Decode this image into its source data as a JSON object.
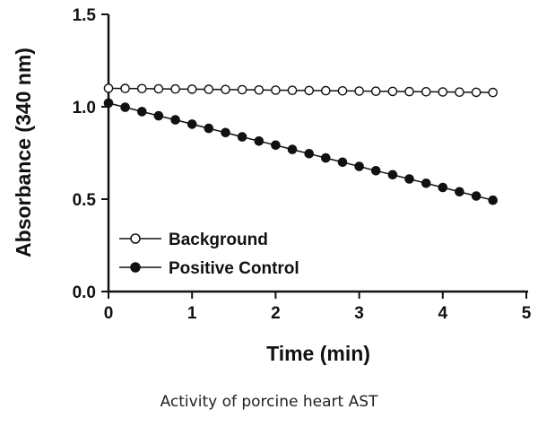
{
  "chart_data": {
    "type": "line",
    "xlabel": "Time (min)",
    "ylabel": "Absorbance (340 nm)",
    "xlim": [
      0,
      5
    ],
    "ylim": [
      0,
      1.5
    ],
    "xticks": [
      "0",
      "1",
      "2",
      "3",
      "4",
      "5"
    ],
    "yticks": [
      "0.0",
      "0.5",
      "1.0",
      "1.5"
    ],
    "grid": false,
    "legend": "lower-left",
    "series": [
      {
        "name": "Background",
        "marker": "open-circle",
        "color": "#111111",
        "x": [
          0,
          0.2,
          0.4,
          0.6,
          0.8,
          1.0,
          1.2,
          1.4,
          1.6,
          1.8,
          2.0,
          2.2,
          2.4,
          2.6,
          2.8,
          3.0,
          3.2,
          3.4,
          3.6,
          3.8,
          4.0,
          4.2,
          4.4,
          4.6
        ],
        "values": [
          1.1,
          1.099,
          1.098,
          1.097,
          1.096,
          1.095,
          1.094,
          1.093,
          1.092,
          1.091,
          1.09,
          1.089,
          1.088,
          1.087,
          1.086,
          1.085,
          1.084,
          1.083,
          1.082,
          1.081,
          1.08,
          1.079,
          1.078,
          1.077
        ]
      },
      {
        "name": "Positive Control",
        "marker": "filled-circle",
        "color": "#111111",
        "x": [
          0,
          0.2,
          0.4,
          0.6,
          0.8,
          1.0,
          1.2,
          1.4,
          1.6,
          1.8,
          2.0,
          2.2,
          2.4,
          2.6,
          2.8,
          3.0,
          3.2,
          3.4,
          3.6,
          3.8,
          4.0,
          4.2,
          4.4,
          4.6
        ],
        "values": [
          1.02,
          0.997,
          0.974,
          0.951,
          0.929,
          0.906,
          0.883,
          0.86,
          0.837,
          0.814,
          0.792,
          0.769,
          0.746,
          0.723,
          0.7,
          0.677,
          0.654,
          0.632,
          0.609,
          0.586,
          0.563,
          0.54,
          0.517,
          0.494
        ]
      }
    ]
  },
  "caption": "Activity of porcine heart AST"
}
